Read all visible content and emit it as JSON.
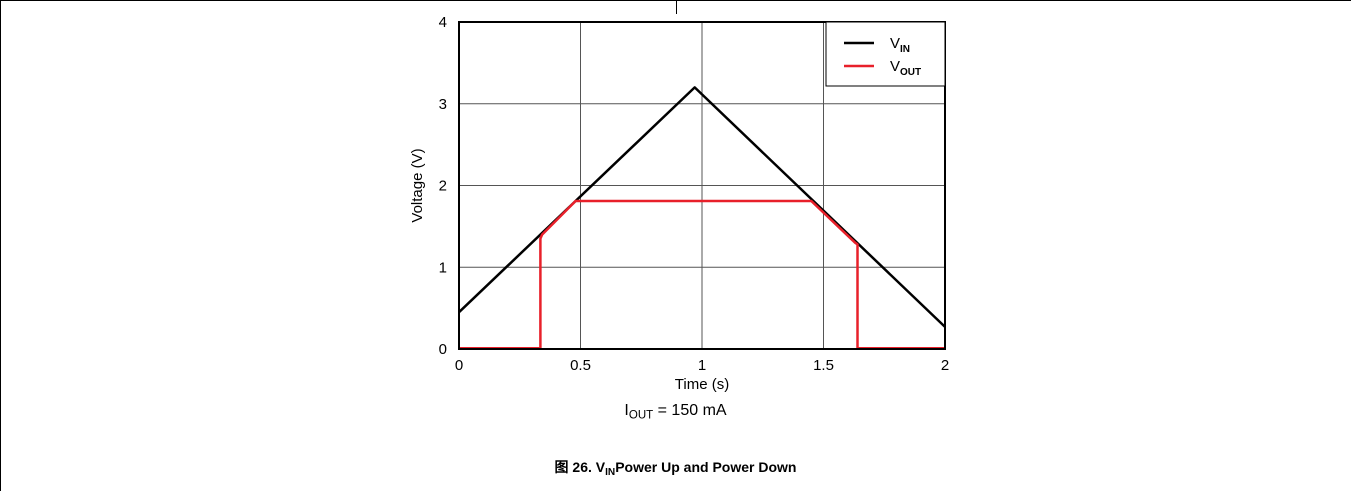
{
  "chart_data": {
    "type": "line",
    "xlabel": "Time (s)",
    "ylabel": "Voltage (V)",
    "xlim": [
      0,
      2
    ],
    "ylim": [
      0,
      4
    ],
    "xticks": [
      0,
      0.5,
      1,
      1.5,
      2
    ],
    "xtick_labels": [
      "0",
      "0.5",
      "1",
      "1.5",
      "2"
    ],
    "yticks": [
      0,
      1,
      2,
      3,
      4
    ],
    "ytick_labels": [
      "0",
      "1",
      "2",
      "3",
      "4"
    ],
    "grid": true,
    "legend_position": "top-right",
    "series": [
      {
        "name": "VIN",
        "label_main": "V",
        "label_sub": "IN",
        "color": "#000000",
        "x": [
          0,
          0.97,
          2
        ],
        "y": [
          0.45,
          3.2,
          0.27
        ]
      },
      {
        "name": "VOUT",
        "label_main": "V",
        "label_sub": "OUT",
        "color": "#e8202a",
        "x": [
          0,
          0.335,
          0.335,
          0.342,
          0.48,
          1.45,
          1.63,
          1.64,
          1.64,
          2
        ],
        "y": [
          0.01,
          0.01,
          1.35,
          1.4,
          1.81,
          1.81,
          1.3,
          1.28,
          0.01,
          0.01
        ]
      }
    ]
  },
  "condition": {
    "prefix": "I",
    "sub": "OUT",
    "rest": " = 150 mA"
  },
  "figure_caption": {
    "prefix": "图 26. V",
    "sub": "IN",
    "rest": "Power Up and Power Down"
  }
}
